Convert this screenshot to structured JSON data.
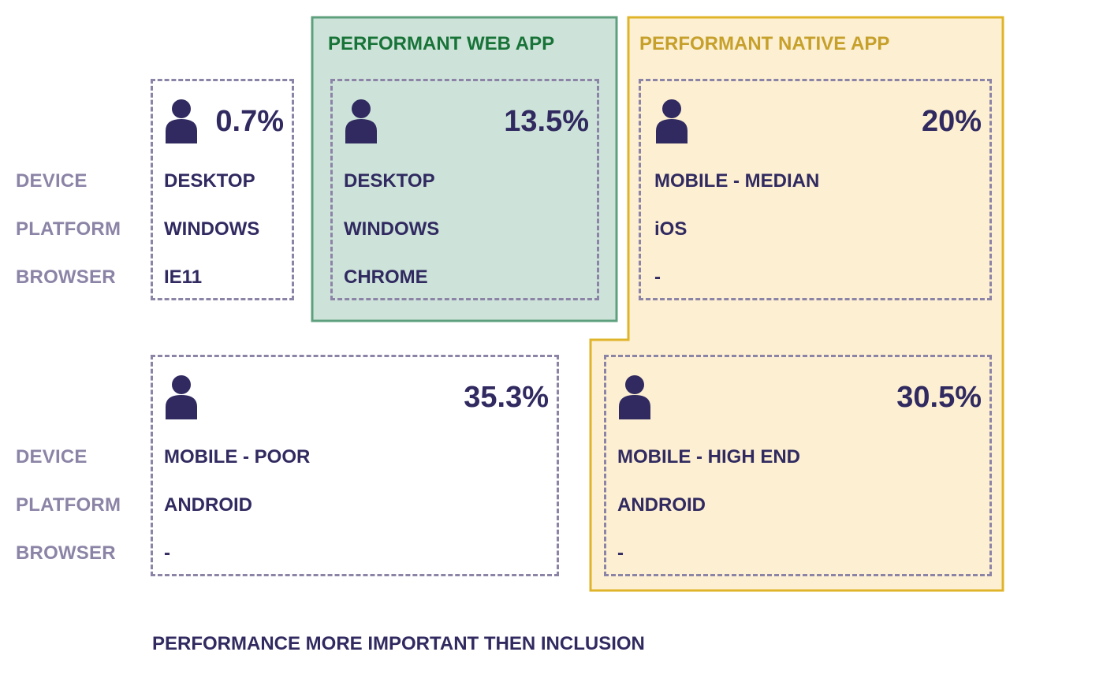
{
  "row_labels": {
    "device": "DEVICE",
    "platform": "PLATFORM",
    "browser": "BROWSER"
  },
  "groups": {
    "web": {
      "title": "PERFORMANT WEB APP",
      "fill": "#cde3d9",
      "stroke": "#5ea07d"
    },
    "native": {
      "title": "PERFORMANT NATIVE APP",
      "fill": "#fcefd2",
      "stroke": "#e0b42a"
    }
  },
  "cards": [
    {
      "percent": "0.7%",
      "device": "DESKTOP",
      "platform": "WINDOWS",
      "browser": "IE11"
    },
    {
      "percent": "13.5%",
      "device": "DESKTOP",
      "platform": "WINDOWS",
      "browser": "CHROME"
    },
    {
      "percent": "20%",
      "device": "MOBILE - MEDIAN",
      "platform": "iOS",
      "browser": "-"
    },
    {
      "percent": "35.3%",
      "device": "MOBILE - POOR",
      "platform": "ANDROID",
      "browser": "-"
    },
    {
      "percent": "30.5%",
      "device": "MOBILE - HIGH END",
      "platform": "ANDROID",
      "browser": "-"
    }
  ],
  "footer": "PERFORMANCE MORE IMPORTANT THEN INCLUSION",
  "colors": {
    "text": "#302a60",
    "label": "#8c84a6",
    "dash": "#8c84a6"
  }
}
